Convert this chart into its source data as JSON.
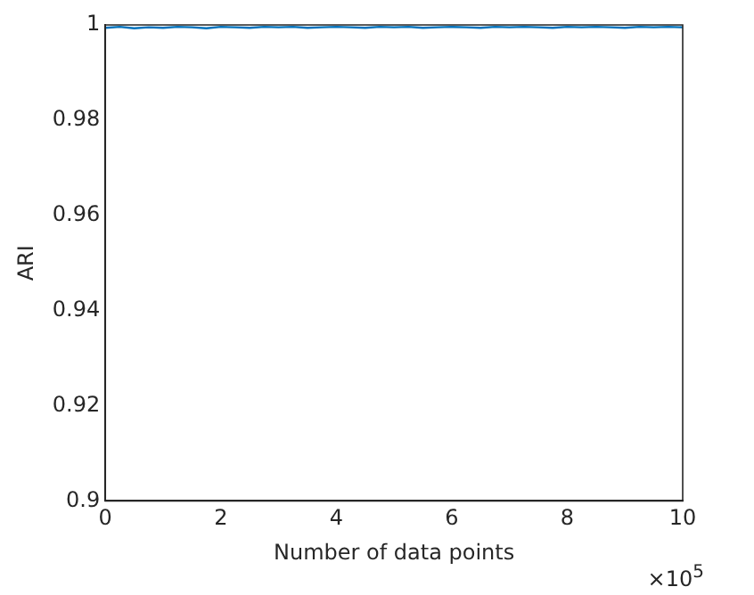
{
  "chart_data": {
    "type": "line",
    "xlabel": "Number of data points",
    "ylabel": "ARI",
    "x": [
      0,
      0.25,
      0.5,
      0.75,
      1,
      1.25,
      1.5,
      1.75,
      2,
      2.25,
      2.5,
      2.75,
      3,
      3.25,
      3.5,
      3.75,
      4,
      4.25,
      4.5,
      4.75,
      5,
      5.25,
      5.5,
      5.75,
      6,
      6.25,
      6.5,
      6.75,
      7,
      7.25,
      7.5,
      7.75,
      8,
      8.25,
      8.5,
      8.75,
      9,
      9.25,
      9.5,
      9.75,
      10
    ],
    "series": [
      {
        "color": "#0072bd",
        "values": [
          0.9994,
          0.9996,
          0.9993,
          0.9995,
          0.9994,
          0.9996,
          0.9995,
          0.9993,
          0.9996,
          0.9995,
          0.9994,
          0.9996,
          0.9995,
          0.9996,
          0.9994,
          0.9995,
          0.9996,
          0.9995,
          0.9994,
          0.9996,
          0.9995,
          0.9996,
          0.9994,
          0.9995,
          0.9996,
          0.9995,
          0.9994,
          0.9996,
          0.9995,
          0.9996,
          0.9995,
          0.9994,
          0.9996,
          0.9995,
          0.9996,
          0.9995,
          0.9994,
          0.9996,
          0.9995,
          0.9996,
          0.9995
        ]
      }
    ],
    "xlim": [
      0,
      10
    ],
    "xticks": [
      0,
      2,
      4,
      6,
      8,
      10
    ],
    "ylim": [
      0.9,
      1
    ],
    "yticks": [
      0.9,
      0.92,
      0.94,
      0.96,
      0.98,
      1
    ],
    "annotations": [
      "×10$^{5}$"
    ],
    "grid": false,
    "legend": false,
    "marker": "none",
    "line_style": "solid"
  }
}
